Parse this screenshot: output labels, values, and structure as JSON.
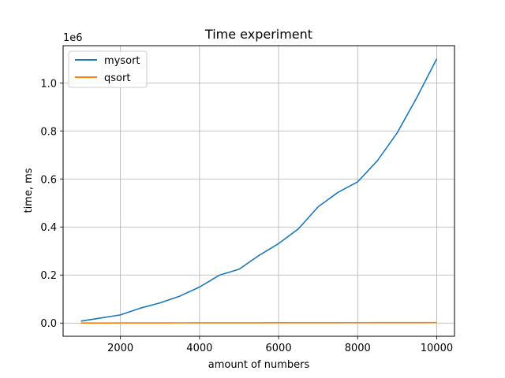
{
  "chart_data": {
    "type": "line",
    "title": "Time experiment",
    "xlabel": "amount of numbers",
    "ylabel": "time, ms",
    "y_offset_label": "1e6",
    "xlim": [
      550,
      10450
    ],
    "ylim": [
      -0.055,
      1.155
    ],
    "x_ticks": [
      2000,
      4000,
      6000,
      8000,
      10000
    ],
    "x_tick_labels": [
      "2000",
      "4000",
      "6000",
      "8000",
      "10000"
    ],
    "y_ticks": [
      0.0,
      0.2,
      0.4,
      0.6,
      0.8,
      1.0
    ],
    "y_tick_labels": [
      "0.0",
      "0.2",
      "0.4",
      "0.6",
      "0.8",
      "1.0"
    ],
    "grid": true,
    "legend_position": "top-left",
    "x": [
      1000,
      1500,
      2000,
      2500,
      3000,
      3500,
      4000,
      4500,
      5000,
      5500,
      6000,
      6500,
      7000,
      7500,
      8000,
      8500,
      9000,
      9500,
      10000
    ],
    "series": [
      {
        "name": "mysort",
        "color": "#1f77b4",
        "values": [
          0.008,
          0.021,
          0.034,
          0.062,
          0.084,
          0.112,
          0.15,
          0.199,
          0.224,
          0.281,
          0.331,
          0.392,
          0.484,
          0.544,
          0.588,
          0.676,
          0.792,
          0.94,
          1.1
        ]
      },
      {
        "name": "qsort",
        "color": "#ff7f0e",
        "values": [
          0.0002,
          0.0003,
          0.0004,
          0.0005,
          0.0006,
          0.0007,
          0.0008,
          0.0009,
          0.001,
          0.0011,
          0.0012,
          0.0013,
          0.0014,
          0.0015,
          0.0016,
          0.0017,
          0.0018,
          0.0019,
          0.002
        ]
      }
    ]
  }
}
